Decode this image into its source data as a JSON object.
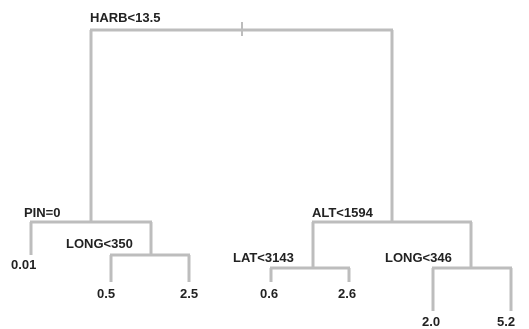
{
  "tree": {
    "colors": {
      "branch": "#bdbdbd",
      "text": "#222222",
      "background": "#ffffff"
    },
    "root": {
      "split": "HARB<13.5",
      "left": {
        "split": "PIN=0",
        "left": {
          "value": "0.01"
        },
        "right": {
          "split": "LONG<350",
          "left": {
            "value": "0.5"
          },
          "right": {
            "value": "2.5"
          }
        }
      },
      "right": {
        "split": "ALT<1594",
        "left": {
          "split": "LAT<3143",
          "left": {
            "value": "0.6"
          },
          "right": {
            "value": "2.6"
          }
        },
        "right": {
          "split": "LONG<346",
          "left": {
            "value": "2.0"
          },
          "right": {
            "value": "5.2"
          }
        }
      }
    }
  }
}
